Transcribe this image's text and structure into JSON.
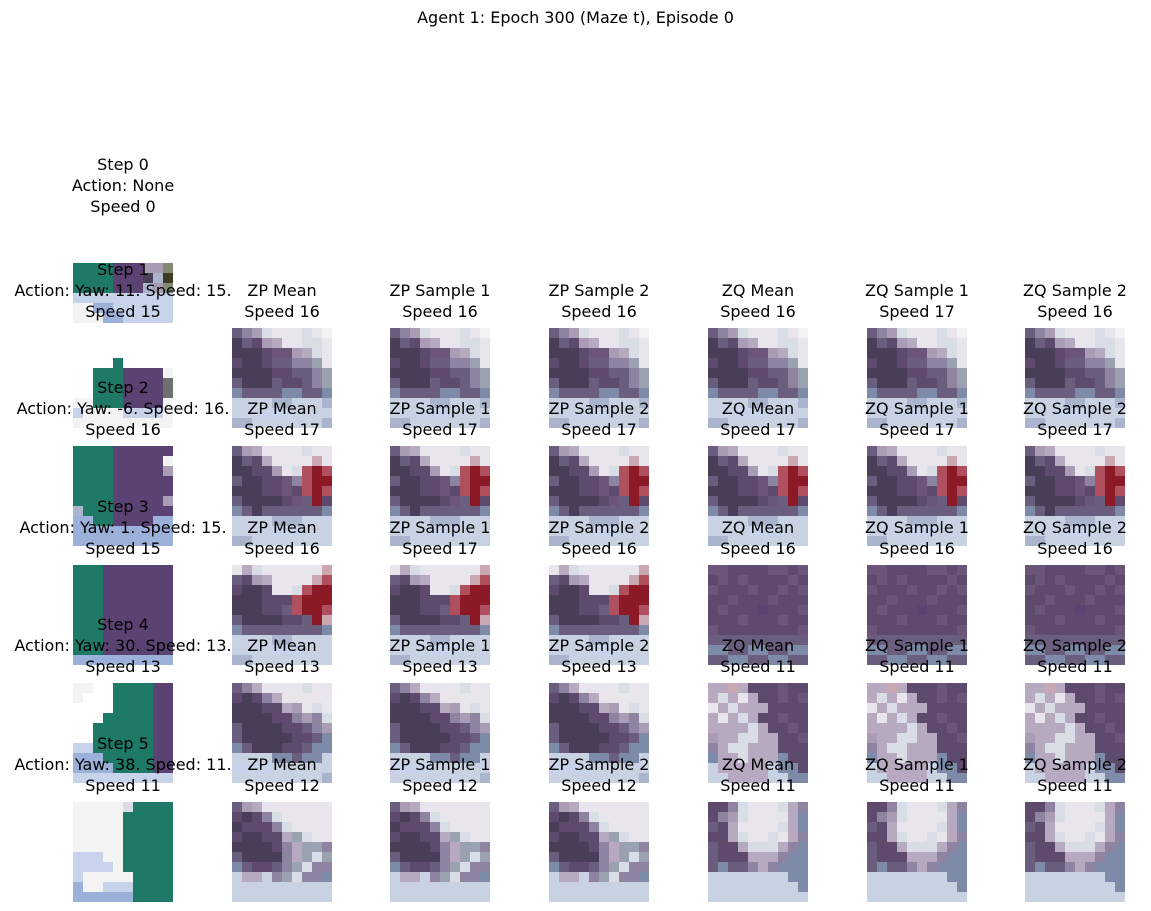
{
  "figure_title": "Agent 1: Epoch 300 (Maze t), Episode 0",
  "rows": [
    {
      "step": {
        "lines": [
          "Step 0",
          "Action: None",
          "Speed 0"
        ],
        "image": "frame-step-0"
      },
      "predictions": []
    },
    {
      "step": {
        "lines": [
          "Step 1",
          "Action: Yaw: 11. Speed: 15.",
          "Speed 15"
        ],
        "image": "frame-step-1"
      },
      "predictions": [
        {
          "lines": [
            "ZP Mean",
            "Speed 16"
          ],
          "image": "pred-a"
        },
        {
          "lines": [
            "ZP Sample 1",
            "Speed 16"
          ],
          "image": "pred-a"
        },
        {
          "lines": [
            "ZP Sample 2",
            "Speed 16"
          ],
          "image": "pred-a"
        },
        {
          "lines": [
            "ZQ Mean",
            "Speed 16"
          ],
          "image": "pred-a"
        },
        {
          "lines": [
            "ZQ Sample 1",
            "Speed 17"
          ],
          "image": "pred-a"
        },
        {
          "lines": [
            "ZQ Sample 2",
            "Speed 16"
          ],
          "image": "pred-a"
        }
      ]
    },
    {
      "step": {
        "lines": [
          "Step 2",
          "Action: Yaw: -6. Speed: 16.",
          "Speed 16"
        ],
        "image": "frame-step-2"
      },
      "predictions": [
        {
          "lines": [
            "ZP Mean",
            "Speed 17"
          ],
          "image": "pred-b"
        },
        {
          "lines": [
            "ZP Sample 1",
            "Speed 17"
          ],
          "image": "pred-b"
        },
        {
          "lines": [
            "ZP Sample 2",
            "Speed 17"
          ],
          "image": "pred-b"
        },
        {
          "lines": [
            "ZQ Mean",
            "Speed 17"
          ],
          "image": "pred-b"
        },
        {
          "lines": [
            "ZQ Sample 1",
            "Speed 17"
          ],
          "image": "pred-b"
        },
        {
          "lines": [
            "ZQ Sample 2",
            "Speed 17"
          ],
          "image": "pred-b"
        }
      ]
    },
    {
      "step": {
        "lines": [
          "Step 3",
          "Action: Yaw: 1. Speed: 15.",
          "Speed 15"
        ],
        "image": "frame-step-3"
      },
      "predictions": [
        {
          "lines": [
            "ZP Mean",
            "Speed 16"
          ],
          "image": "pred-c"
        },
        {
          "lines": [
            "ZP Sample 1",
            "Speed 17"
          ],
          "image": "pred-c"
        },
        {
          "lines": [
            "ZP Sample 2",
            "Speed 16"
          ],
          "image": "pred-c"
        },
        {
          "lines": [
            "ZQ Mean",
            "Speed 16"
          ],
          "image": "pred-d"
        },
        {
          "lines": [
            "ZQ Sample 1",
            "Speed 16"
          ],
          "image": "pred-d"
        },
        {
          "lines": [
            "ZQ Sample 2",
            "Speed 16"
          ],
          "image": "pred-d"
        }
      ]
    },
    {
      "step": {
        "lines": [
          "Step 4",
          "Action: Yaw: 30. Speed: 13.",
          "Speed 13"
        ],
        "image": "frame-step-4"
      },
      "predictions": [
        {
          "lines": [
            "ZP Mean",
            "Speed 13"
          ],
          "image": "pred-e"
        },
        {
          "lines": [
            "ZP Sample 1",
            "Speed 13"
          ],
          "image": "pred-e"
        },
        {
          "lines": [
            "ZP Sample 2",
            "Speed 13"
          ],
          "image": "pred-e"
        },
        {
          "lines": [
            "ZQ Mean",
            "Speed 11"
          ],
          "image": "pred-f"
        },
        {
          "lines": [
            "ZQ Sample 1",
            "Speed 11"
          ],
          "image": "pred-f"
        },
        {
          "lines": [
            "ZQ Sample 2",
            "Speed 11"
          ],
          "image": "pred-f"
        }
      ]
    },
    {
      "step": {
        "lines": [
          "Step 5",
          "Action: Yaw: 38. Speed: 11.",
          "Speed 11"
        ],
        "image": "frame-step-5"
      },
      "predictions": [
        {
          "lines": [
            "ZP Mean",
            "Speed 12"
          ],
          "image": "pred-g"
        },
        {
          "lines": [
            "ZP Sample 1",
            "Speed 12"
          ],
          "image": "pred-g"
        },
        {
          "lines": [
            "ZP Sample 2",
            "Speed 12"
          ],
          "image": "pred-g"
        },
        {
          "lines": [
            "ZQ Mean",
            "Speed 11"
          ],
          "image": "pred-h"
        },
        {
          "lines": [
            "ZQ Sample 1",
            "Speed 11"
          ],
          "image": "pred-h"
        },
        {
          "lines": [
            "ZQ Sample 2",
            "Speed 11"
          ],
          "image": "pred-h"
        }
      ]
    }
  ],
  "palette": {
    "G": "#1e7a66",
    "P": "#5a4272",
    "W": "#f3f3f3",
    "L": "#c6d3ea",
    "B": "#9cb1da",
    "V": "#a99cb4",
    "K": "#3d3b24",
    "O": "#868a72",
    "A": "#6f6f6f",
    "D": "#4a3d58",
    "M": "#6a5d7d",
    "S": "#aab4cc",
    "E": "#c9d2e2",
    "T": "#e8e5ec",
    "R": "#8c1a26",
    "r": "#b0505e",
    "p": "#c9a8b2",
    "U": "#5e4a6c",
    "u": "#6b5579",
    "Q": "#8e83a0",
    "q": "#b7a9c0",
    "Y": "#9aa2b0",
    "X": "#d9dde6",
    "Z": "#7d8ba8"
  },
  "images": {
    "frame-step-0": [
      "......................",
      "....................",
      "....................",
      "....................",
      "....................",
      "....................",
      "...........",
      "..........",
      "..........",
      ".........."
    ],
    "frame-step-1": [],
    "frame-step-2": [],
    "frame-step-3": [],
    "frame-step-4": [],
    "frame-step-5": [],
    "pred-a": [],
    "pred-b": [],
    "pred-c": [],
    "pred-d": [],
    "pred-e": [],
    "pred-f": [],
    "pred-g": [],
    "pred-h": []
  }
}
